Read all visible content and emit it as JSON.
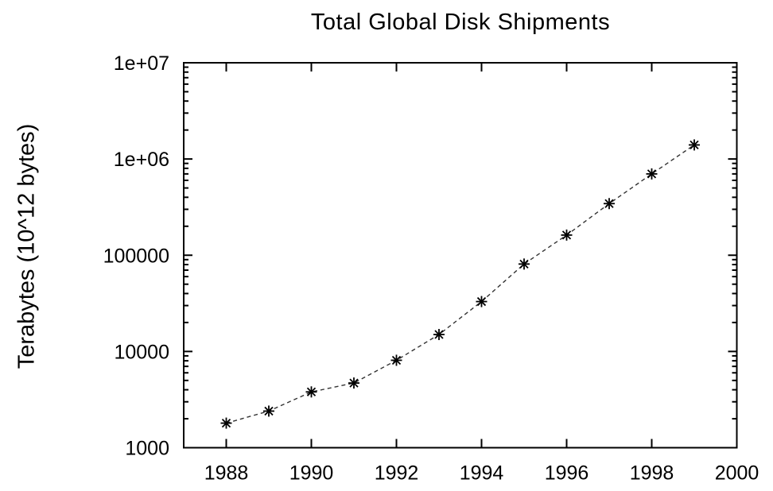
{
  "figure": {
    "background": "#ffffff"
  },
  "chart_data": {
    "type": "line",
    "title": "Total Global Disk Shipments",
    "xlabel": "",
    "ylabel": "Terabytes (10^12 bytes)",
    "x": [
      1988,
      1989,
      1990,
      1991,
      1992,
      1993,
      1994,
      1995,
      1996,
      1997,
      1998,
      1999
    ],
    "values": [
      1800,
      2400,
      3800,
      4700,
      8100,
      15000,
      33000,
      81000,
      162000,
      344000,
      700000,
      1400000
    ],
    "series": [
      {
        "name": "Total Global Disk Shipments",
        "values": [
          1800,
          2400,
          3800,
          4700,
          8100,
          15000,
          33000,
          81000,
          162000,
          344000,
          700000,
          1400000
        ]
      }
    ],
    "xlim": [
      1987,
      2000
    ],
    "ylim": [
      1000,
      10000000
    ],
    "y_scale": "log",
    "x_ticks": [
      {
        "value": 1988,
        "label": "1988"
      },
      {
        "value": 1990,
        "label": "1990"
      },
      {
        "value": 1992,
        "label": "1992"
      },
      {
        "value": 1994,
        "label": "1994"
      },
      {
        "value": 1996,
        "label": "1996"
      },
      {
        "value": 1998,
        "label": "1998"
      },
      {
        "value": 2000,
        "label": "2000"
      }
    ],
    "y_ticks": [
      {
        "value": 1000,
        "label": "1000"
      },
      {
        "value": 10000,
        "label": "10000"
      },
      {
        "value": 100000,
        "label": "100000"
      },
      {
        "value": 1000000,
        "label": "1e+06"
      },
      {
        "value": 10000000,
        "label": "1e+07"
      }
    ],
    "grid": false,
    "legend": false,
    "marker": "asterisk",
    "line_style": "dashed",
    "colors": {
      "axis": "#000000",
      "text": "#000000",
      "line": "#333333",
      "marker": "#000000"
    }
  }
}
